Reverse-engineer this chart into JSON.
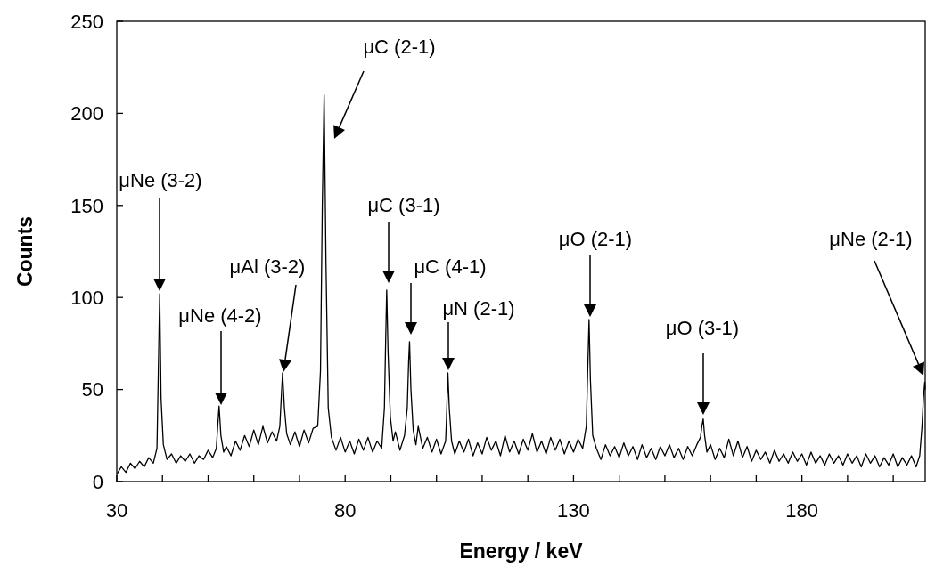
{
  "chart_data": {
    "type": "line",
    "xlabel": "Energy / keV",
    "ylabel": "Counts",
    "xlim": [
      30,
      207
    ],
    "ylim": [
      0,
      250
    ],
    "xticks": [
      30,
      {
        "value": 40,
        "label": null
      },
      {
        "value": 50,
        "label": null
      },
      {
        "value": 60,
        "label": null
      },
      {
        "value": 70,
        "label": null
      },
      80,
      {
        "value": 90,
        "label": null
      },
      {
        "value": 100,
        "label": null
      },
      {
        "value": 110,
        "label": null
      },
      {
        "value": 120,
        "label": null
      },
      130,
      {
        "value": 140,
        "label": null
      },
      {
        "value": 150,
        "label": null
      },
      {
        "value": 160,
        "label": null
      },
      {
        "value": 170,
        "label": null
      },
      180,
      {
        "value": 190,
        "label": null
      },
      {
        "value": 200,
        "label": null
      }
    ],
    "yticks": [
      0,
      50,
      100,
      150,
      200,
      250
    ],
    "grid": false,
    "marker": "none",
    "line_style": "solid",
    "series": [
      {
        "color": "#000000",
        "x": [
          30,
          31,
          32,
          33,
          34,
          35,
          36,
          37,
          38,
          38.8,
          39.1,
          39.4,
          39.7,
          40.2,
          41,
          42,
          43,
          44,
          45,
          46,
          47,
          48,
          49,
          50,
          51,
          51.8,
          52.1,
          52.4,
          52.8,
          53.4,
          54,
          55,
          56,
          57,
          58,
          59,
          60,
          61,
          62,
          63,
          64,
          65,
          65.7,
          66,
          66.3,
          66.7,
          67.2,
          68,
          69,
          70,
          71,
          72,
          73,
          74,
          74.6,
          75,
          75.4,
          75.8,
          76.3,
          77,
          78,
          79,
          80,
          81,
          82,
          83,
          84,
          85,
          86,
          87,
          88,
          88.6,
          88.9,
          89.1,
          89.4,
          89.9,
          90.5,
          91,
          92,
          93,
          93.6,
          93.9,
          94.1,
          94.4,
          94.9,
          95.5,
          96,
          97,
          98,
          99,
          100,
          101,
          102,
          102.2,
          102.5,
          102.8,
          103.3,
          104,
          105,
          106,
          107,
          108,
          109,
          110,
          111,
          112,
          113,
          114,
          115,
          116,
          117,
          118,
          119,
          120,
          121,
          122,
          123,
          124,
          125,
          126,
          127,
          128,
          129,
          130,
          131,
          132,
          132.8,
          133.1,
          133.4,
          133.7,
          134.2,
          135,
          136,
          137,
          138,
          139,
          140,
          141,
          142,
          143,
          144,
          145,
          146,
          147,
          148,
          149,
          150,
          151,
          152,
          153,
          154,
          155,
          156,
          157,
          157.8,
          158.1,
          158.4,
          158.7,
          159.2,
          160,
          161,
          162,
          163,
          164,
          165,
          166,
          167,
          168,
          169,
          170,
          171,
          172,
          173,
          174,
          175,
          176,
          177,
          178,
          179,
          180,
          181,
          182,
          183,
          184,
          185,
          186,
          187,
          188,
          189,
          190,
          191,
          192,
          193,
          194,
          195,
          196,
          197,
          198,
          199,
          200,
          201,
          202,
          203,
          204,
          205,
          205.8,
          206.3,
          206.6,
          206.9,
          207
        ],
        "values": [
          4,
          8,
          5,
          10,
          7,
          11,
          8,
          13,
          10,
          18,
          60,
          102,
          45,
          20,
          12,
          15,
          10,
          14,
          11,
          15,
          10,
          14,
          12,
          17,
          13,
          18,
          30,
          41,
          25,
          16,
          19,
          14,
          22,
          17,
          25,
          19,
          28,
          20,
          30,
          21,
          27,
          22,
          30,
          45,
          59,
          40,
          26,
          20,
          27,
          19,
          28,
          21,
          29,
          30,
          60,
          150,
          210,
          120,
          40,
          24,
          17,
          24,
          16,
          22,
          15,
          23,
          17,
          24,
          16,
          22,
          18,
          40,
          80,
          104,
          70,
          35,
          22,
          27,
          17,
          25,
          40,
          65,
          76,
          50,
          28,
          20,
          30,
          18,
          24,
          16,
          23,
          15,
          22,
          35,
          59,
          40,
          22,
          15,
          22,
          16,
          23,
          14,
          21,
          15,
          24,
          17,
          22,
          14,
          25,
          16,
          22,
          15,
          23,
          17,
          26,
          16,
          22,
          15,
          24,
          17,
          23,
          15,
          22,
          16,
          23,
          18,
          30,
          60,
          88,
          55,
          25,
          18,
          12,
          20,
          14,
          19,
          13,
          21,
          14,
          19,
          12,
          20,
          13,
          18,
          12,
          19,
          14,
          20,
          13,
          18,
          12,
          19,
          14,
          20,
          24,
          30,
          34,
          25,
          16,
          20,
          12,
          18,
          13,
          23,
          14,
          22,
          13,
          19,
          11,
          17,
          12,
          16,
          10,
          17,
          11,
          15,
          10,
          16,
          11,
          15,
          9,
          16,
          10,
          14,
          9,
          15,
          10,
          14,
          9,
          15,
          10,
          14,
          8,
          15,
          10,
          14,
          8,
          13,
          9,
          15,
          8,
          13,
          9,
          14,
          8,
          14,
          30,
          45,
          54,
          50
        ]
      }
    ],
    "annotations": [
      "μNe (3-2)",
      "μNe (4-2)",
      "μAl (3-2)",
      "μC (2-1)",
      "μC (3-1)",
      "μC (4-1)",
      "μN (2-1)",
      "μO (2-1)",
      "μO (3-1)",
      "μNe (2-1)"
    ]
  }
}
